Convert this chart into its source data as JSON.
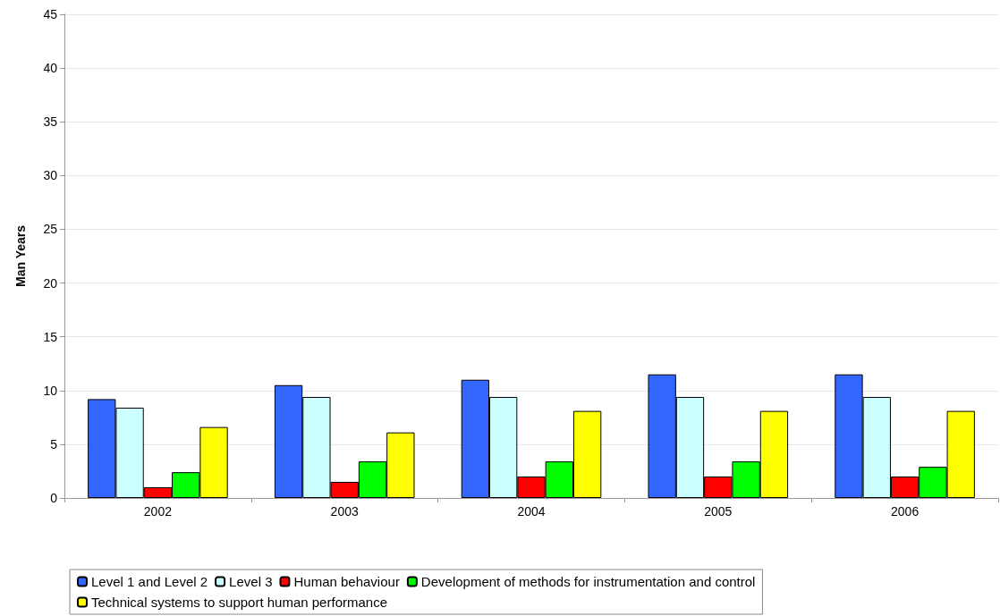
{
  "chart_data": {
    "type": "bar",
    "ylabel": "Man Years",
    "categories": [
      "2002",
      "2003",
      "2004",
      "2005",
      "2006"
    ],
    "series": [
      {
        "name": "Level 1 and Level 2",
        "color": "#3366ff",
        "values": [
          9.2,
          10.5,
          11.0,
          11.5,
          11.5
        ]
      },
      {
        "name": "Level 3",
        "color": "#ccffff",
        "values": [
          8.4,
          9.4,
          9.4,
          9.4,
          9.4
        ]
      },
      {
        "name": "Human behaviour",
        "color": "#ff0000",
        "values": [
          1.0,
          1.5,
          2.0,
          2.0,
          2.0
        ]
      },
      {
        "name": "Development of methods for instrumentation and control",
        "color": "#00ff00",
        "values": [
          2.4,
          3.4,
          3.4,
          3.4,
          2.9
        ]
      },
      {
        "name": "Technical systems to support human performance",
        "color": "#ffff00",
        "values": [
          6.6,
          6.1,
          8.1,
          8.1,
          8.1
        ]
      }
    ],
    "ylim": [
      0,
      45
    ],
    "yticks": [
      0,
      5,
      10,
      15,
      20,
      25,
      30,
      35,
      40,
      45
    ],
    "grid": "y",
    "legend": "bottom"
  }
}
